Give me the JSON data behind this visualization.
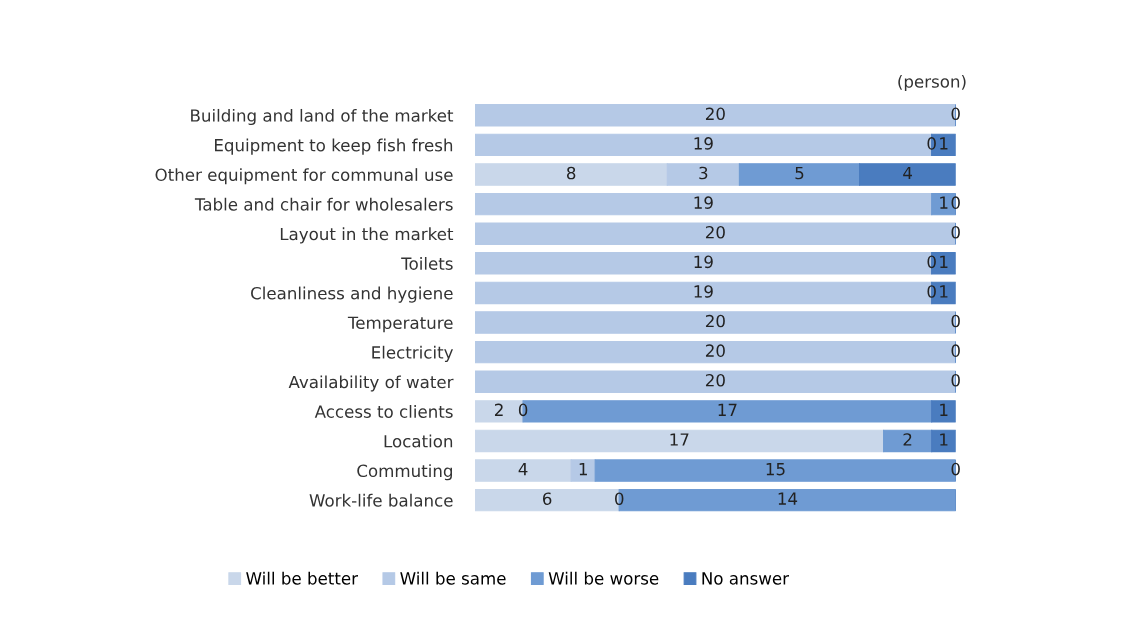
{
  "chart_data": {
    "type": "bar",
    "orientation": "horizontal",
    "stacked": true,
    "categories": [
      "Building and land of the market",
      "Equipment to keep fish fresh",
      "Other equipment for communal use",
      "Table and chair for wholesalers",
      "Layout in the market",
      "Toilets",
      "Cleanliness and hygiene",
      "Temperature",
      "Electricity",
      "Availability of water",
      "Access to clients",
      "Location",
      "Commuting",
      "Work-life balance"
    ],
    "series": [
      {
        "name": "Will be better",
        "color": "#c9d7ea",
        "values": [
          0,
          0,
          8,
          0,
          0,
          0,
          0,
          0,
          0,
          0,
          2,
          17,
          4,
          6
        ],
        "value_labels": [
          null,
          null,
          "8",
          null,
          null,
          null,
          null,
          null,
          null,
          null,
          "2",
          "17",
          "4",
          "6"
        ]
      },
      {
        "name": "Will be same",
        "color": "#b5c9e6",
        "values": [
          20,
          19,
          3,
          19,
          20,
          19,
          19,
          20,
          20,
          20,
          0,
          0,
          1,
          0
        ],
        "value_labels": [
          "20",
          "19",
          "3",
          "19",
          "20",
          "19",
          "19",
          "20",
          "20",
          "20",
          "0",
          null,
          "1",
          "0"
        ]
      },
      {
        "name": "Will be worse",
        "color": "#6f9bd3",
        "values": [
          0,
          0,
          5,
          1,
          0,
          0,
          0,
          0,
          0,
          0,
          17,
          2,
          15,
          14
        ],
        "value_labels": [
          null,
          "0",
          "5",
          "1",
          null,
          "0",
          "0",
          null,
          null,
          null,
          "17",
          "2",
          "15",
          "14"
        ]
      },
      {
        "name": "No answer",
        "color": "#4a7cbf",
        "values": [
          0,
          1,
          4,
          0,
          0,
          1,
          1,
          0,
          0,
          0,
          1,
          1,
          0,
          0
        ],
        "value_labels": [
          "0",
          "1",
          "4",
          "0",
          "0",
          "1",
          "1",
          "0",
          "0",
          "0",
          "1",
          "1",
          "0",
          null
        ]
      }
    ],
    "xlim": [
      0,
      20
    ],
    "tick_labels": "y",
    "grid": false,
    "legend": "bottom",
    "annotations": [
      "(person)"
    ]
  }
}
